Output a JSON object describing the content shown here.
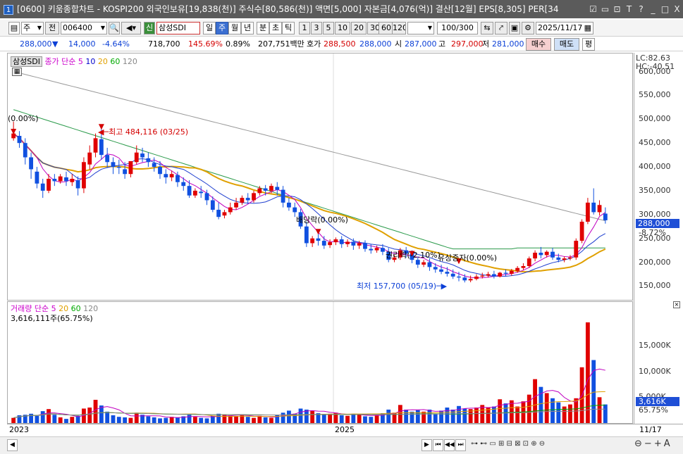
{
  "window": {
    "number": "1",
    "title": "[0600] 키움종합차트 - KOSPI200 외국인보유[19,838(천)] 주식수[80,586(천)] 액면[5,000] 자본금[4,076(억)] 결산[12월] EPS[8,305] PER[34",
    "buttons": [
      "☑",
      "▭",
      "⊡",
      "T",
      "?",
      "_",
      "□",
      "X"
    ]
  },
  "toolbar": {
    "menu_icon": "▤",
    "market": "주",
    "prev_label": "전",
    "code": "006400",
    "stock_name": "삼성SDI",
    "credit_badge": "신",
    "periods": [
      "일",
      "주",
      "월",
      "년",
      "분",
      "초",
      "틱"
    ],
    "selected_period": "주",
    "intervals": [
      "1",
      "3",
      "5",
      "10",
      "20",
      "30",
      "60",
      "120"
    ],
    "count": "100/300",
    "date": "2025/11/17"
  },
  "quote": {
    "price": "288,000",
    "change_arrow": "▼",
    "change": "14,000",
    "change_pct": "-4.64%",
    "volume": "718,700",
    "volume_ratio": "145.69%",
    "turnover": "0.89%",
    "amount": "207,751백만",
    "ask_label": "호가",
    "ask": "288,500",
    "bid": "288,000",
    "open_label": "시",
    "open": "287,000",
    "high_label": "고",
    "high": "297,000",
    "low_label": "저",
    "low": "281,000",
    "buy_button": "매수",
    "sell_button": "매도",
    "eval_button": "평"
  },
  "price_panel": {
    "name_label": "삼성SDI",
    "ma_label": "종가 단순",
    "ma_periods": [
      "5",
      "10",
      "20",
      "60",
      "120"
    ],
    "lc_label": "LC:82.63",
    "hc_label": "HC:-40.51",
    "y_ticks": [
      "600,000",
      "550,000",
      "500,000",
      "450,000",
      "400,000",
      "350,000",
      "300,000",
      "250,000",
      "200,000",
      "150,000"
    ],
    "current_price": "288,000",
    "current_pct": "-8.72%",
    "annotations": {
      "left_start": "(0.00%)",
      "high": "최고 484,116 (03/25)",
      "dividend": "배당락(0.00%)",
      "rights": "권리락(-2.10%)",
      "capital_increase": "유상증자(0.00%)",
      "low": "최저 157,700 (05/19)"
    }
  },
  "volume_panel": {
    "title": "거래량 단순",
    "ma_periods": [
      "5",
      "20",
      "60",
      "120"
    ],
    "current": "3,616,111주(65.75%)",
    "y_ticks": [
      "15,000K",
      "10,000K",
      "5,000K"
    ],
    "current_tag": "3,616K",
    "current_pct": "65.75%"
  },
  "x_axis": {
    "labels": [
      "2023",
      "2025"
    ],
    "right_label": "11/17"
  },
  "chart_data": {
    "type": "candlestick",
    "y_range": [
      130000,
      620000
    ],
    "candles": [
      [
        460000,
        495000,
        470000,
        455000
      ],
      [
        465000,
        475000,
        450000,
        440000
      ],
      [
        450000,
        460000,
        420000,
        405000
      ],
      [
        420000,
        430000,
        395000,
        375000
      ],
      [
        390000,
        400000,
        365000,
        355000
      ],
      [
        365000,
        375000,
        350000,
        335000
      ],
      [
        350000,
        385000,
        375000,
        345000
      ],
      [
        375000,
        385000,
        370000,
        360000
      ],
      [
        370000,
        385000,
        380000,
        365000
      ],
      [
        378000,
        390000,
        370000,
        360000
      ],
      [
        368000,
        385000,
        375000,
        360000
      ],
      [
        372000,
        380000,
        355000,
        340000
      ],
      [
        355000,
        420000,
        410000,
        345000
      ],
      [
        405000,
        445000,
        430000,
        395000
      ],
      [
        430000,
        470000,
        460000,
        420000
      ],
      [
        458000,
        484116,
        425000,
        415000
      ],
      [
        425000,
        440000,
        410000,
        398000
      ],
      [
        410000,
        420000,
        400000,
        385000
      ],
      [
        400000,
        415000,
        398000,
        385000
      ],
      [
        395000,
        410000,
        385000,
        375000
      ],
      [
        385000,
        400000,
        412000,
        378000
      ],
      [
        410000,
        445000,
        430000,
        405000
      ],
      [
        428000,
        440000,
        420000,
        410000
      ],
      [
        418000,
        430000,
        410000,
        400000
      ],
      [
        408000,
        420000,
        400000,
        390000
      ],
      [
        400000,
        412000,
        385000,
        375000
      ],
      [
        385000,
        395000,
        378000,
        365000
      ],
      [
        378000,
        392000,
        385000,
        370000
      ],
      [
        383000,
        390000,
        368000,
        358000
      ],
      [
        368000,
        378000,
        360000,
        350000
      ],
      [
        360000,
        372000,
        340000,
        335000
      ],
      [
        340000,
        355000,
        350000,
        335000
      ],
      [
        348000,
        360000,
        345000,
        335000
      ],
      [
        345000,
        352000,
        330000,
        320000
      ],
      [
        330000,
        338000,
        310000,
        305000
      ],
      [
        310000,
        325000,
        295000,
        290000
      ],
      [
        298000,
        310000,
        305000,
        292000
      ],
      [
        305000,
        325000,
        315000,
        300000
      ],
      [
        315000,
        335000,
        325000,
        310000
      ],
      [
        325000,
        340000,
        335000,
        320000
      ],
      [
        335000,
        345000,
        330000,
        322000
      ],
      [
        330000,
        350000,
        345000,
        325000
      ],
      [
        345000,
        360000,
        355000,
        340000
      ],
      [
        355000,
        362000,
        350000,
        340000
      ],
      [
        350000,
        365000,
        360000,
        345000
      ],
      [
        358000,
        368000,
        352000,
        340000
      ],
      [
        352000,
        360000,
        325000,
        315000
      ],
      [
        325000,
        335000,
        315000,
        308000
      ],
      [
        315000,
        325000,
        305000,
        295000
      ],
      [
        305000,
        312000,
        275000,
        270000
      ],
      [
        275000,
        285000,
        240000,
        232000
      ],
      [
        240000,
        255000,
        250000,
        232000
      ],
      [
        250000,
        262000,
        245000,
        235000
      ],
      [
        245000,
        255000,
        235000,
        228000
      ],
      [
        236000,
        248000,
        242000,
        230000
      ],
      [
        242000,
        252000,
        248000,
        236000
      ],
      [
        248000,
        255000,
        238000,
        230000
      ],
      [
        238000,
        248000,
        243000,
        232000
      ],
      [
        243000,
        250000,
        235000,
        226000
      ],
      [
        235000,
        245000,
        240000,
        228000
      ],
      [
        240000,
        246000,
        228000,
        222000
      ],
      [
        228000,
        238000,
        225000,
        218000
      ],
      [
        225000,
        235000,
        230000,
        220000
      ],
      [
        230000,
        238000,
        222000,
        215000
      ],
      [
        222000,
        230000,
        205000,
        200000
      ],
      [
        205000,
        215000,
        210000,
        200000
      ],
      [
        210000,
        230000,
        225000,
        205000
      ],
      [
        225000,
        232000,
        218000,
        210000
      ],
      [
        218000,
        225000,
        205000,
        198000
      ],
      [
        205000,
        212000,
        195000,
        188000
      ],
      [
        195000,
        205000,
        200000,
        190000
      ],
      [
        200000,
        208000,
        190000,
        182000
      ],
      [
        190000,
        198000,
        185000,
        178000
      ],
      [
        185000,
        195000,
        180000,
        175000
      ],
      [
        180000,
        190000,
        176000,
        170000
      ],
      [
        176000,
        185000,
        170000,
        165000
      ],
      [
        170000,
        180000,
        168000,
        160000
      ],
      [
        168000,
        175000,
        162000,
        157700
      ],
      [
        162000,
        172000,
        165000,
        158000
      ],
      [
        165000,
        175000,
        170000,
        162000
      ],
      [
        170000,
        178000,
        172000,
        166000
      ],
      [
        172000,
        180000,
        175000,
        168000
      ],
      [
        175000,
        182000,
        170000,
        166000
      ],
      [
        170000,
        180000,
        178000,
        168000
      ],
      [
        178000,
        185000,
        176000,
        170000
      ],
      [
        176000,
        186000,
        182000,
        172000
      ],
      [
        182000,
        192000,
        188000,
        178000
      ],
      [
        188000,
        198000,
        192000,
        184000
      ],
      [
        192000,
        212000,
        208000,
        188000
      ],
      [
        208000,
        225000,
        220000,
        202000
      ],
      [
        220000,
        232000,
        215000,
        208000
      ],
      [
        215000,
        225000,
        222000,
        210000
      ],
      [
        222000,
        230000,
        210000,
        205000
      ],
      [
        210000,
        218000,
        205000,
        200000
      ],
      [
        205000,
        212000,
        208000,
        200000
      ],
      [
        208000,
        215000,
        210000,
        204000
      ],
      [
        210000,
        250000,
        245000,
        205000
      ],
      [
        245000,
        290000,
        285000,
        240000
      ],
      [
        285000,
        335000,
        325000,
        280000
      ],
      [
        325000,
        355000,
        305000,
        300000
      ],
      [
        305000,
        330000,
        320000,
        298000
      ],
      [
        302000,
        315000,
        288000,
        281000
      ]
    ],
    "volumes": [
      1.0,
      1.5,
      1.6,
      1.8,
      1.4,
      2.3,
      2.7,
      1.6,
      1.1,
      0.8,
      1.2,
      1.4,
      2.8,
      3.0,
      4.5,
      3.4,
      2.2,
      1.5,
      1.2,
      1.1,
      1.0,
      2.0,
      1.6,
      1.3,
      1.1,
      0.9,
      1.0,
      1.2,
      1.1,
      1.3,
      1.6,
      1.2,
      1.0,
      0.9,
      1.4,
      1.8,
      1.6,
      1.5,
      1.3,
      1.7,
      1.2,
      1.0,
      1.4,
      1.1,
      1.0,
      1.6,
      2.0,
      2.4,
      1.8,
      2.8,
      2.6,
      2.4,
      1.9,
      1.7,
      1.8,
      2.0,
      1.5,
      1.4,
      1.8,
      1.6,
      1.3,
      1.2,
      1.5,
      1.9,
      2.6,
      2.0,
      3.5,
      2.6,
      2.2,
      2.5,
      2.2,
      2.6,
      1.8,
      2.4,
      3.0,
      2.6,
      3.3,
      2.8,
      2.7,
      3.0,
      3.5,
      3.0,
      3.2,
      4.6,
      3.8,
      4.4,
      3.2,
      4.2,
      5.5,
      8.5,
      7.0,
      5.8,
      4.8,
      4.0,
      3.2,
      3.6,
      4.8,
      10.8,
      19.5,
      12.2,
      5.0,
      3.6
    ]
  }
}
